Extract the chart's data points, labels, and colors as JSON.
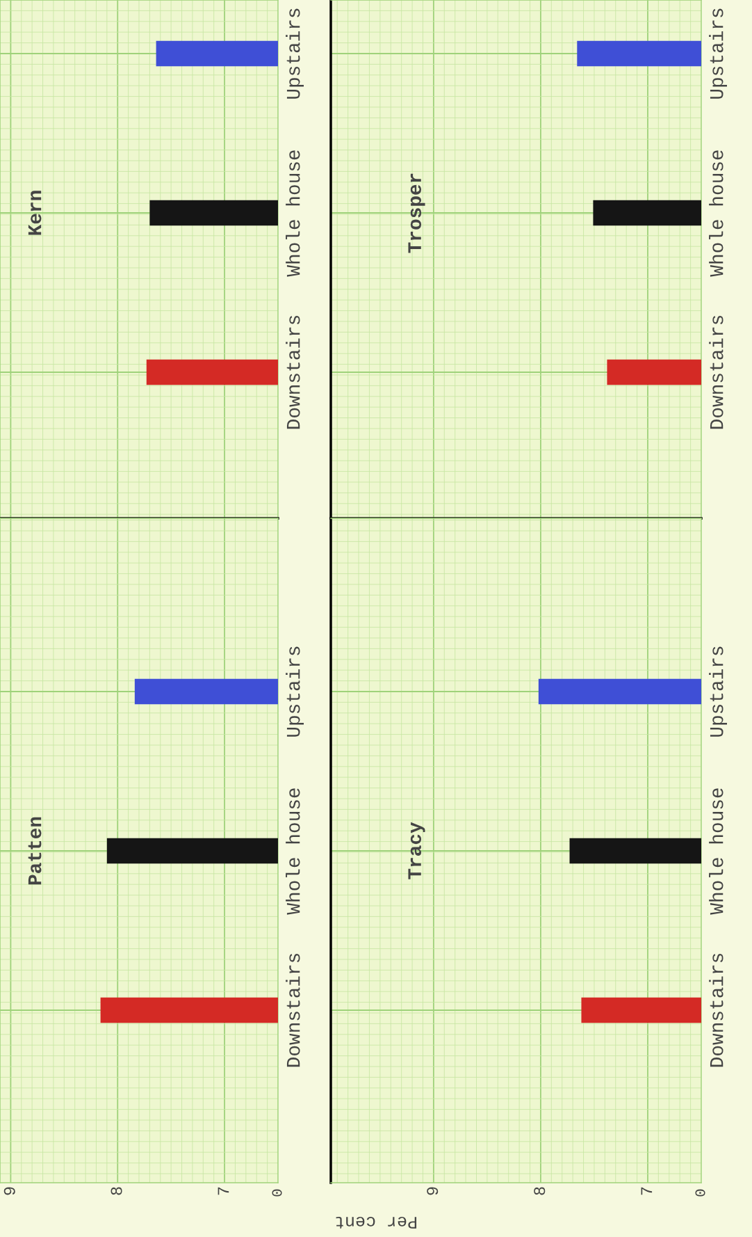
{
  "chart_data": [
    {
      "type": "bar",
      "orientation": "horizontal",
      "title": "Kern",
      "categories": [
        "Upstairs",
        "Whole house",
        "Downstairs"
      ],
      "values": [
        7.64,
        7.7,
        7.73
      ],
      "colors": [
        "#3f4fd6",
        "#151515",
        "#d42a25"
      ],
      "xlim": [
        9.1,
        6.5
      ],
      "grid": true,
      "tick_labels": "y"
    },
    {
      "type": "bar",
      "orientation": "horizontal",
      "title": "Trosper",
      "categories": [
        "Upstairs",
        "Whole house",
        "Downstairs"
      ],
      "values": [
        7.66,
        7.51,
        7.38
      ],
      "colors": [
        "#3f4fd6",
        "#151515",
        "#d42a25"
      ],
      "xlim": [
        9.96,
        6.5
      ],
      "grid": true,
      "tick_labels": "y"
    },
    {
      "type": "bar",
      "orientation": "horizontal",
      "title": "Patten",
      "xlabel": "Per cent",
      "categories": [
        "Upstairs",
        "Whole house",
        "Downstairs"
      ],
      "values": [
        7.84,
        8.1,
        8.16
      ],
      "colors": [
        "#3f4fd6",
        "#151515",
        "#d42a25"
      ],
      "xlim": [
        9.1,
        6.5
      ],
      "xticks": [
        7,
        8,
        9
      ],
      "grid": true,
      "annotations": [
        "0"
      ]
    },
    {
      "type": "bar",
      "orientation": "horizontal",
      "title": "Tracy",
      "categories": [
        "Upstairs",
        "Whole house",
        "Downstairs"
      ],
      "values": [
        8.02,
        7.73,
        7.62
      ],
      "colors": [
        "#3f4fd6",
        "#151515",
        "#d42a25"
      ],
      "xlim": [
        9.96,
        6.5
      ],
      "xticks": [
        7,
        8,
        9
      ],
      "grid": true,
      "annotations": [
        "0"
      ]
    }
  ]
}
